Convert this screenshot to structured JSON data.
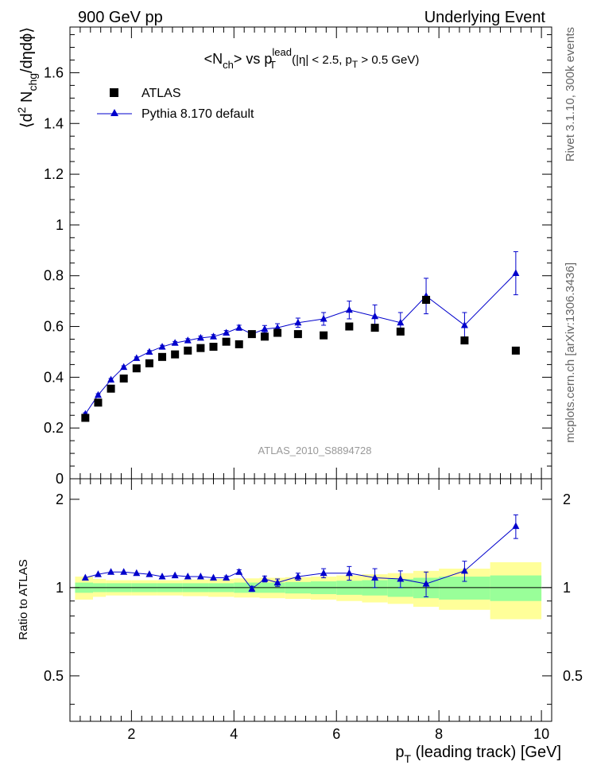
{
  "header": {
    "left": "900 GeV pp",
    "right": "Underlying Event"
  },
  "side_labels": {
    "rivet": "Rivet 3.1.10,  300k events",
    "mcplots": "mcplots.cern.ch [arXiv:1306.3436]"
  },
  "watermark": "ATLAS_2010_S8894728",
  "colors": {
    "mc": "#0000cc",
    "data": "#000000",
    "band_stat": "#99ff99",
    "band_total": "#ffff99"
  },
  "chart_data": [
    {
      "id": "main",
      "type": "scatter",
      "title": {
        "base": "<N",
        "sub1": "ch",
        "mid": "> vs p",
        "sup2": "lead",
        "sub2": "T",
        "tail_a": " (|η| < 2.5, p",
        "sub3": "T",
        "tail_b": " > 0.5 GeV)"
      },
      "ylabel": {
        "a": "⟨d",
        "sup": "2",
        "b": " N",
        "sub": "chg",
        "c": "/dηdϕ⟩"
      },
      "xlim": [
        0.8,
        10.2
      ],
      "ylim": [
        0,
        1.78
      ],
      "yticks": [
        0,
        0.2,
        0.4,
        0.6,
        0.8,
        1,
        1.2,
        1.4,
        1.6
      ],
      "ytick_labels": [
        "0",
        "0.2",
        "0.4",
        "0.6",
        "0.8",
        "1",
        "1.2",
        "1.4",
        "1.6"
      ],
      "legend": {
        "data": "ATLAS",
        "mc": "Pythia 8.170 default",
        "position": "top-left"
      },
      "x": [
        1.1,
        1.35,
        1.6,
        1.85,
        2.1,
        2.35,
        2.6,
        2.85,
        3.1,
        3.35,
        3.6,
        3.85,
        4.1,
        4.35,
        4.6,
        4.85,
        5.25,
        5.75,
        6.25,
        6.75,
        7.25,
        7.75,
        8.5,
        9.5
      ],
      "series": [
        {
          "name": "ATLAS",
          "marker": "square",
          "values": [
            0.24,
            0.3,
            0.355,
            0.395,
            0.435,
            0.455,
            0.48,
            0.49,
            0.505,
            0.515,
            0.52,
            0.54,
            0.53,
            0.57,
            0.56,
            0.575,
            0.57,
            0.565,
            0.6,
            0.595,
            0.58,
            0.705,
            0.545,
            0.505
          ]
        },
        {
          "name": "Pythia 8.170 default",
          "marker": "triangle",
          "values": [
            0.255,
            0.33,
            0.39,
            0.44,
            0.475,
            0.5,
            0.52,
            0.535,
            0.545,
            0.555,
            0.56,
            0.575,
            0.595,
            0.57,
            0.59,
            0.595,
            0.615,
            0.63,
            0.665,
            0.64,
            0.615,
            0.72,
            0.605,
            0.81
          ],
          "errors": [
            0.005,
            0.005,
            0.005,
            0.005,
            0.005,
            0.005,
            0.006,
            0.006,
            0.007,
            0.007,
            0.008,
            0.009,
            0.01,
            0.012,
            0.014,
            0.016,
            0.018,
            0.025,
            0.035,
            0.045,
            0.04,
            0.07,
            0.05,
            0.085
          ]
        }
      ]
    },
    {
      "id": "ratio",
      "type": "scatter",
      "ylabel": "Ratio to ATLAS",
      "xlabel": {
        "a": "p",
        "sub": "T",
        "b": " (leading track) [GeV]"
      },
      "ylim": [
        0.35,
        2.35
      ],
      "xlim": [
        0.8,
        10.2
      ],
      "xticks": [
        2,
        4,
        6,
        8,
        10
      ],
      "xtick_labels": [
        "2",
        "4",
        "6",
        "8",
        "10"
      ],
      "yticks": [
        0.5,
        1,
        2
      ],
      "ytick_labels": [
        "0.5",
        "1",
        "2"
      ],
      "x": [
        1.1,
        1.35,
        1.6,
        1.85,
        2.1,
        2.35,
        2.6,
        2.85,
        3.1,
        3.35,
        3.6,
        3.85,
        4.1,
        4.35,
        4.6,
        4.85,
        5.25,
        5.75,
        6.25,
        6.75,
        7.25,
        7.75,
        8.5,
        9.5
      ],
      "series": [
        {
          "name": "Pythia 8.170 default / ATLAS",
          "values": [
            1.08,
            1.11,
            1.13,
            1.13,
            1.12,
            1.11,
            1.09,
            1.1,
            1.09,
            1.09,
            1.08,
            1.08,
            1.13,
            0.99,
            1.07,
            1.04,
            1.09,
            1.12,
            1.12,
            1.08,
            1.07,
            1.03,
            1.14,
            1.62
          ],
          "errors": [
            0.01,
            0.01,
            0.01,
            0.01,
            0.01,
            0.01,
            0.01,
            0.01,
            0.01,
            0.01,
            0.01,
            0.015,
            0.02,
            0.02,
            0.025,
            0.03,
            0.03,
            0.04,
            0.06,
            0.08,
            0.07,
            0.1,
            0.09,
            0.15
          ]
        }
      ],
      "band_x": [
        0.9,
        1.25,
        1.5,
        2,
        2.5,
        3,
        3.5,
        4,
        4.5,
        5,
        5.5,
        6,
        6.5,
        7,
        7.5,
        8,
        9,
        10
      ],
      "band_stat": [
        0.04,
        0.035,
        0.035,
        0.035,
        0.035,
        0.035,
        0.035,
        0.04,
        0.04,
        0.045,
        0.05,
        0.055,
        0.06,
        0.07,
        0.08,
        0.09,
        0.1
      ],
      "band_total": [
        0.09,
        0.07,
        0.06,
        0.06,
        0.06,
        0.065,
        0.07,
        0.075,
        0.08,
        0.085,
        0.09,
        0.1,
        0.11,
        0.12,
        0.14,
        0.16,
        0.22
      ]
    }
  ]
}
